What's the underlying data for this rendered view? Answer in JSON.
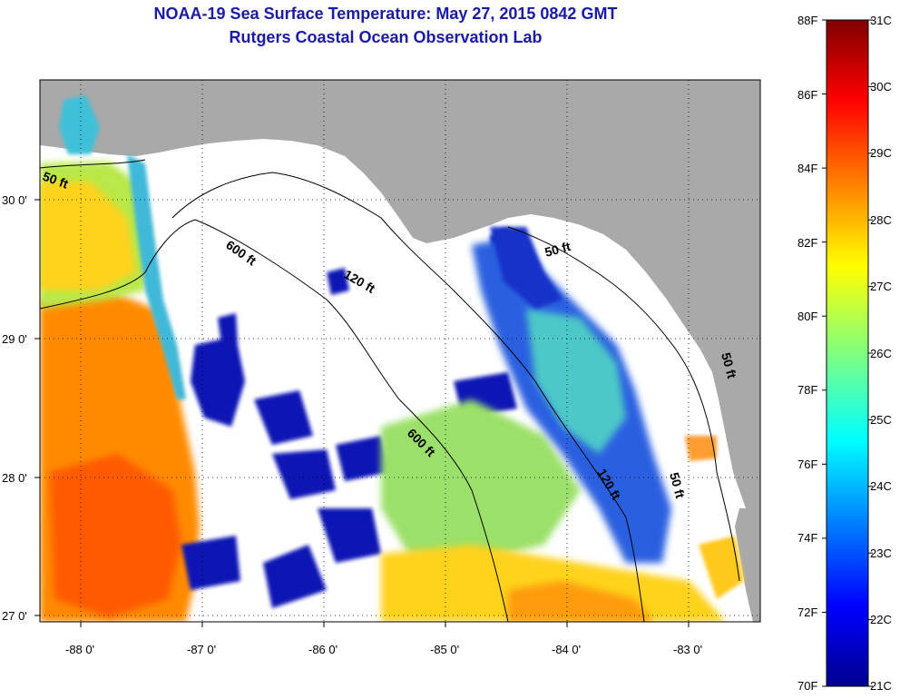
{
  "header": {
    "title_line1": "NOAA-19 Sea Surface Temperature:  May 27, 2015 0842 GMT",
    "title_line2": "Rutgers Coastal Ocean Observation Lab"
  },
  "map": {
    "lon_ticks": [
      "-88 0'",
      "-87 0'",
      "-86 0'",
      "-85 0'",
      "-84 0'",
      "-83 0'"
    ],
    "lat_ticks": [
      "30 0'",
      "29 0'",
      "28 0'",
      "27 0'"
    ],
    "contour_labels": [
      "50 ft",
      "600 ft",
      "120 ft",
      "50 ft",
      "600 ft",
      "120 ft",
      "50 ft",
      "50 ft"
    ],
    "land_color": "#a9a9a9",
    "cloud_color": "#ffffff"
  },
  "colorbar": {
    "fahrenheit": [
      "88F",
      "86F",
      "84F",
      "82F",
      "80F",
      "78F",
      "76F",
      "74F",
      "72F",
      "70F"
    ],
    "celsius": [
      "31C",
      "30C",
      "29C",
      "28C",
      "27C",
      "26C",
      "25C",
      "24C",
      "23C",
      "22C",
      "21C"
    ],
    "colormap": "jet",
    "range_c": [
      21,
      31
    ]
  }
}
